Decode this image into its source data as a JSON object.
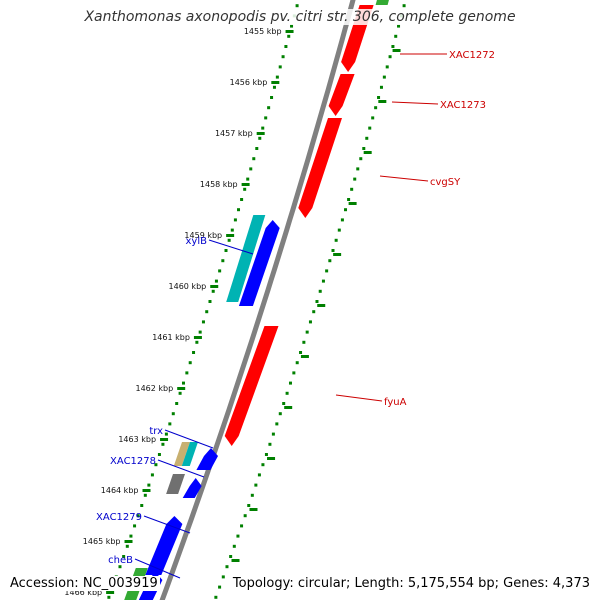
{
  "title": "Xanthomonas axonopodis pv. citri str. 306, complete genome",
  "footer": {
    "accession": "Accession: NC_003919",
    "summary": "Topology: circular; Length: 5,175,554 bp; Genes: 4,373"
  },
  "colors": {
    "backbone": "#808080",
    "tick_marks": "#008000",
    "forward_gene": "#ff0000",
    "reverse_gene": "#0000ff",
    "forward_label": "#cc0000",
    "reverse_label": "#0000cc",
    "teal_gene": "#00b3b3",
    "green_gene": "#33aa33"
  },
  "ticks": [
    {
      "label": "1455 kbp",
      "kb": 1455
    },
    {
      "label": "1456 kbp",
      "kb": 1456
    },
    {
      "label": "1457 kbp",
      "kb": 1457
    },
    {
      "label": "1458 kbp",
      "kb": 1458
    },
    {
      "label": "1459 kbp",
      "kb": 1459
    },
    {
      "label": "1460 kbp",
      "kb": 1460
    },
    {
      "label": "1461 kbp",
      "kb": 1461
    },
    {
      "label": "1462 kbp",
      "kb": 1462
    },
    {
      "label": "1463 kbp",
      "kb": 1463
    },
    {
      "label": "1464 kbp",
      "kb": 1464
    },
    {
      "label": "1465 kbp",
      "kb": 1465
    },
    {
      "label": "1466 kbp",
      "kb": 1466
    }
  ],
  "labels": [
    {
      "name": "XAC1272",
      "strand": "forward"
    },
    {
      "name": "XAC1273",
      "strand": "forward"
    },
    {
      "name": "cvgSY",
      "strand": "forward"
    },
    {
      "name": "fyuA",
      "strand": "forward"
    },
    {
      "name": "xylB",
      "strand": "reverse"
    },
    {
      "name": "trx",
      "strand": "reverse"
    },
    {
      "name": "XAC1278",
      "strand": "reverse"
    },
    {
      "name": "XAC1279",
      "strand": "reverse"
    },
    {
      "name": "cheB",
      "strand": "reverse"
    }
  ]
}
